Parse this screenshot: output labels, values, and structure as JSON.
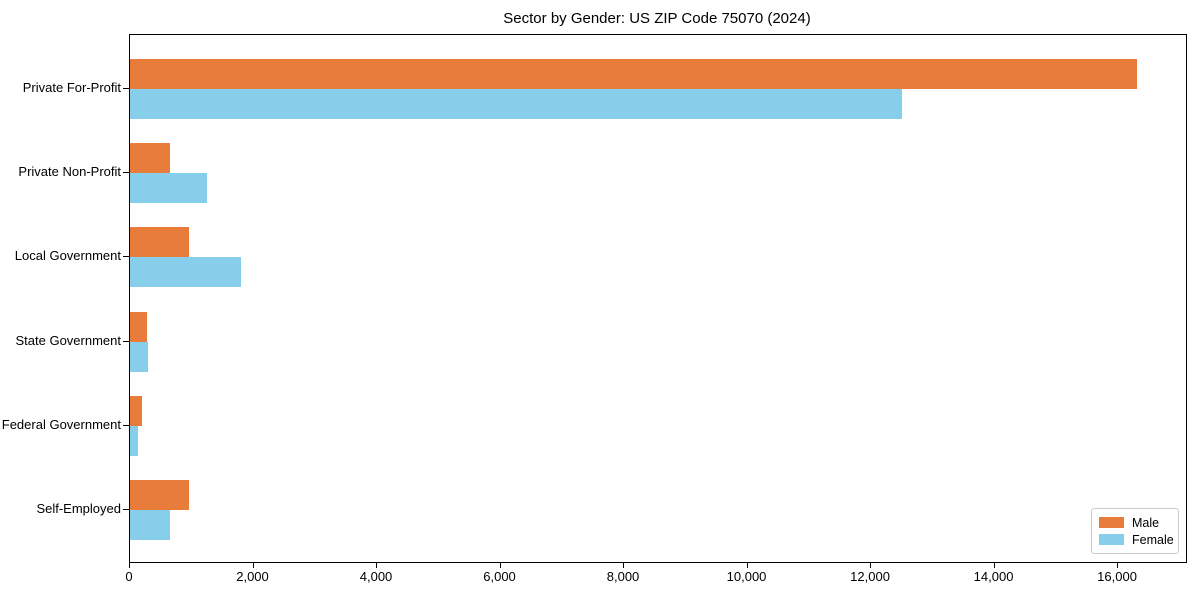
{
  "chart_data": {
    "type": "bar",
    "orientation": "horizontal",
    "title": "Sector by Gender: US ZIP Code 75070 (2024)",
    "categories": [
      "Private For-Profit",
      "Private Non-Profit",
      "Local Government",
      "State Government",
      "Federal Government",
      "Self-Employed"
    ],
    "series": [
      {
        "name": "Male",
        "color": "#e87c3a",
        "values": [
          16300,
          650,
          960,
          270,
          200,
          950
        ]
      },
      {
        "name": "Female",
        "color": "#87ceeb",
        "values": [
          12500,
          1250,
          1800,
          290,
          130,
          650
        ]
      }
    ],
    "xlabel": "",
    "ylabel": "",
    "xlim": [
      0,
      17100
    ],
    "x_ticks": [
      0,
      2000,
      4000,
      6000,
      8000,
      10000,
      12000,
      14000,
      16000
    ],
    "x_tick_labels": [
      "0",
      "2,000",
      "4,000",
      "6,000",
      "8,000",
      "10,000",
      "12,000",
      "14,000",
      "16,000"
    ],
    "grid": false,
    "legend_position": "lower-right"
  }
}
